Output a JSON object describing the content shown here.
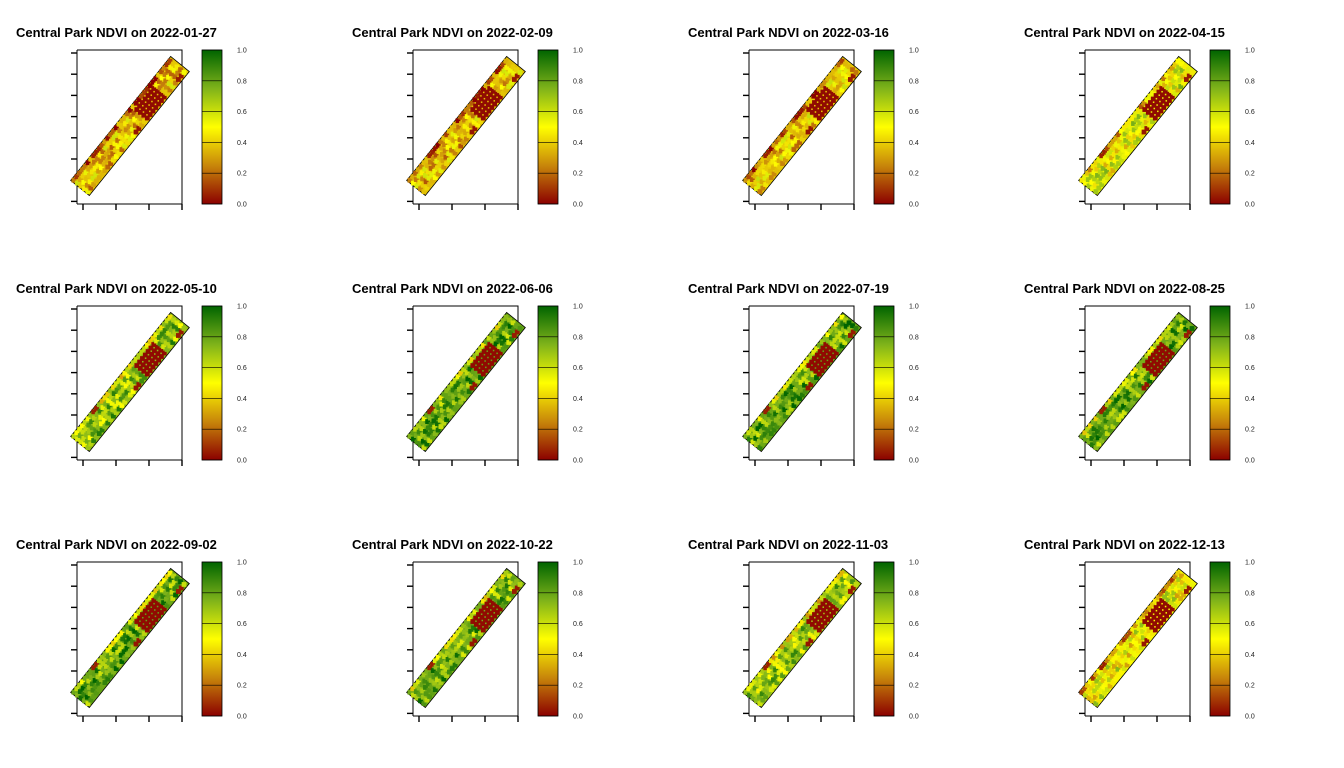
{
  "colors": {
    "ramp": [
      "#8b0000",
      "#c8860a",
      "#ffff00",
      "#7fb31a",
      "#006400"
    ],
    "background": "#ffffff",
    "axis": "#000000"
  },
  "chart_data": [
    {
      "type": "heatmap",
      "title": "Central Park NDVI on 2022-01-27",
      "legend": "right",
      "colorbar_ticks": [
        "0.0",
        "0.2",
        "0.4",
        "0.6",
        "0.8",
        "1.0"
      ],
      "value_range": [
        0,
        1
      ],
      "approx_mean_ndvi": 0.38
    },
    {
      "type": "heatmap",
      "title": "Central Park NDVI on 2022-02-09",
      "legend": "right",
      "colorbar_ticks": [
        "0.0",
        "0.2",
        "0.4",
        "0.6",
        "0.8",
        "1.0"
      ],
      "value_range": [
        0,
        1
      ],
      "approx_mean_ndvi": 0.37
    },
    {
      "type": "heatmap",
      "title": "Central Park NDVI on 2022-03-16",
      "legend": "right",
      "colorbar_ticks": [
        "0.0",
        "0.2",
        "0.4",
        "0.6",
        "0.8",
        "1.0"
      ],
      "value_range": [
        0,
        1
      ],
      "approx_mean_ndvi": 0.39
    },
    {
      "type": "heatmap",
      "title": "Central Park NDVI on 2022-04-15",
      "legend": "right",
      "colorbar_ticks": [
        "0.0",
        "0.2",
        "0.4",
        "0.6",
        "0.8",
        "1.0"
      ],
      "value_range": [
        0,
        1
      ],
      "approx_mean_ndvi": 0.55
    },
    {
      "type": "heatmap",
      "title": "Central Park NDVI on 2022-05-10",
      "legend": "right",
      "colorbar_ticks": [
        "0.0",
        "0.2",
        "0.4",
        "0.6",
        "0.8",
        "1.0"
      ],
      "value_range": [
        0,
        1
      ],
      "approx_mean_ndvi": 0.72
    },
    {
      "type": "heatmap",
      "title": "Central Park NDVI on 2022-06-06",
      "legend": "right",
      "colorbar_ticks": [
        "0.0",
        "0.2",
        "0.4",
        "0.6",
        "0.8",
        "1.0"
      ],
      "value_range": [
        0,
        1
      ],
      "approx_mean_ndvi": 0.8
    },
    {
      "type": "heatmap",
      "title": "Central Park NDVI on 2022-07-19",
      "legend": "right",
      "colorbar_ticks": [
        "0.0",
        "0.2",
        "0.4",
        "0.6",
        "0.8",
        "1.0"
      ],
      "value_range": [
        0,
        1
      ],
      "approx_mean_ndvi": 0.8
    },
    {
      "type": "heatmap",
      "title": "Central Park NDVI on 2022-08-25",
      "legend": "right",
      "colorbar_ticks": [
        "0.0",
        "0.2",
        "0.4",
        "0.6",
        "0.8",
        "1.0"
      ],
      "value_range": [
        0,
        1
      ],
      "approx_mean_ndvi": 0.79
    },
    {
      "type": "heatmap",
      "title": "Central Park NDVI on 2022-09-02",
      "legend": "right",
      "colorbar_ticks": [
        "0.0",
        "0.2",
        "0.4",
        "0.6",
        "0.8",
        "1.0"
      ],
      "value_range": [
        0,
        1
      ],
      "approx_mean_ndvi": 0.8
    },
    {
      "type": "heatmap",
      "title": "Central Park NDVI on 2022-10-22",
      "legend": "right",
      "colorbar_ticks": [
        "0.0",
        "0.2",
        "0.4",
        "0.6",
        "0.8",
        "1.0"
      ],
      "value_range": [
        0,
        1
      ],
      "approx_mean_ndvi": 0.77
    },
    {
      "type": "heatmap",
      "title": "Central Park NDVI on 2022-11-03",
      "legend": "right",
      "colorbar_ticks": [
        "0.0",
        "0.2",
        "0.4",
        "0.6",
        "0.8",
        "1.0"
      ],
      "value_range": [
        0,
        1
      ],
      "approx_mean_ndvi": 0.68
    },
    {
      "type": "heatmap",
      "title": "Central Park NDVI on 2022-12-13",
      "legend": "right",
      "colorbar_ticks": [
        "0.0",
        "0.2",
        "0.4",
        "0.6",
        "0.8",
        "1.0"
      ],
      "value_range": [
        0,
        1
      ],
      "approx_mean_ndvi": 0.52
    }
  ]
}
